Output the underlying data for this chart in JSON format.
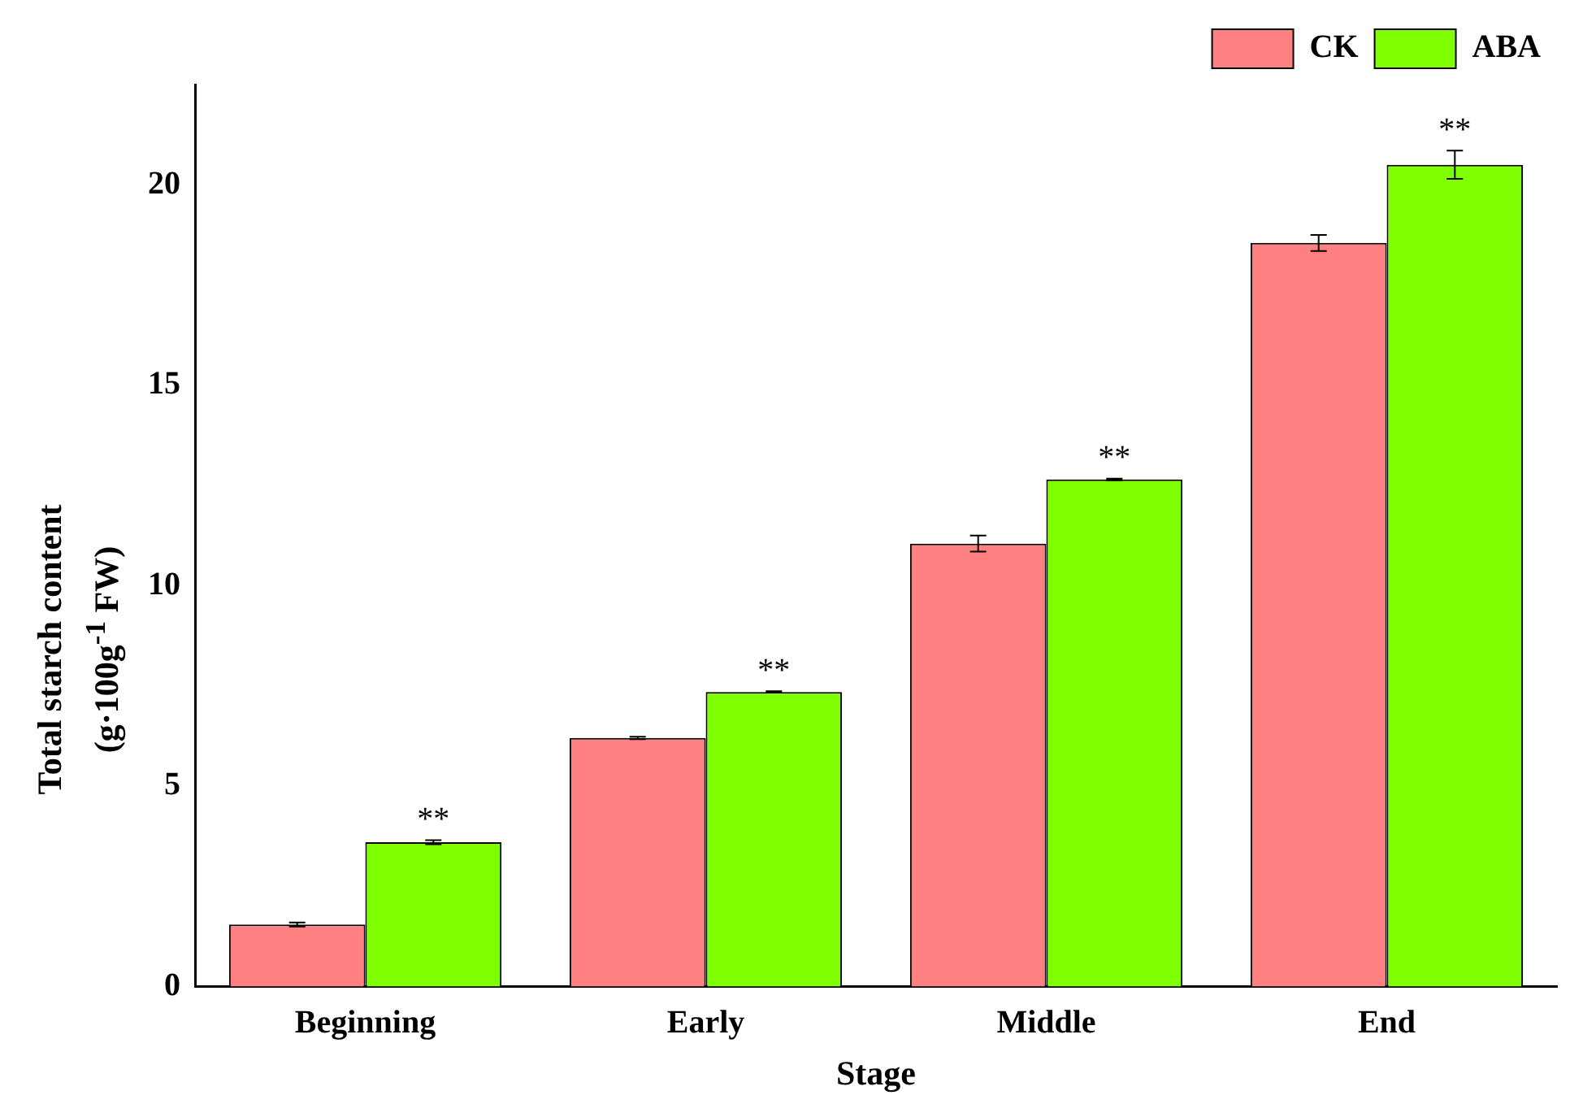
{
  "chart_data": {
    "type": "bar",
    "xlabel": "Stage",
    "ylabel": "Total starch content (g·100g$^{-1}$ FW)",
    "categories": [
      "Beginning",
      "Early",
      "Middle",
      "End"
    ],
    "series": [
      {
        "name": "CK",
        "color": "#ff8080",
        "values": [
          1.55,
          6.2,
          11.05,
          18.55
        ],
        "errors": [
          0.05,
          0.03,
          0.2,
          0.2
        ]
      },
      {
        "name": "ABA",
        "color": "#80ff00",
        "values": [
          3.6,
          7.35,
          12.65,
          20.5
        ],
        "errors": [
          0.05,
          0.02,
          0.02,
          0.35
        ]
      }
    ],
    "ylim": [
      0,
      22.5
    ],
    "yticks": [
      0,
      5,
      10,
      15,
      20
    ],
    "grid": false,
    "legend": "top right",
    "annotations": [
      {
        "text": "**",
        "x": "Beginning",
        "y": 3.6
      },
      {
        "text": "**",
        "x": "Early",
        "y": 7.35
      },
      {
        "text": "**",
        "x": "Middle",
        "y": 12.65
      },
      {
        "text": "**",
        "x": "End",
        "y": 20.5
      }
    ]
  }
}
